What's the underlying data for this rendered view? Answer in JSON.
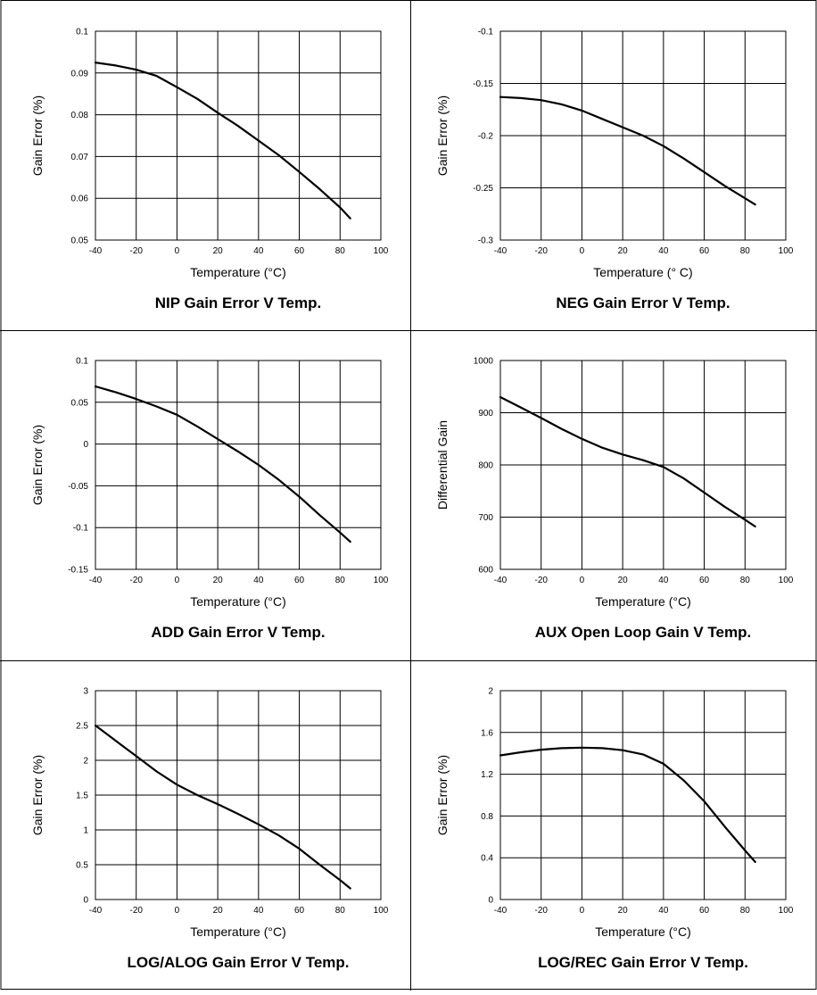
{
  "chart_data": [
    {
      "type": "line",
      "title": "NIP Gain Error V Temp.",
      "xlabel": "Temperature (°C)",
      "ylabel": "Gain Error (%)",
      "xlim": [
        -40,
        100
      ],
      "ylim": [
        0.05,
        0.1
      ],
      "xticks": [
        "-40",
        "-20",
        "0",
        "20",
        "40",
        "60",
        "80",
        "100"
      ],
      "yticks": [
        "0.05",
        "0.06",
        "0.07",
        "0.08",
        "0.09",
        "0.1"
      ],
      "grid": true,
      "series": [
        {
          "x": [
            -40,
            -30,
            -20,
            -10,
            0,
            10,
            20,
            30,
            40,
            50,
            60,
            70,
            80,
            85
          ],
          "y": [
            0.0925,
            0.0918,
            0.0908,
            0.0893,
            0.0866,
            0.0838,
            0.0805,
            0.0773,
            0.0738,
            0.0703,
            0.0663,
            0.0622,
            0.0578,
            0.0552
          ]
        }
      ]
    },
    {
      "type": "line",
      "title": "NEG Gain Error V Temp.",
      "xlabel": "Temperature (° C)",
      "ylabel": "Gain Error (%)",
      "xlim": [
        -40,
        100
      ],
      "ylim": [
        -0.3,
        -0.1
      ],
      "xticks": [
        "-40",
        "-20",
        "0",
        "20",
        "40",
        "60",
        "80",
        "100"
      ],
      "yticks": [
        "-0.3",
        "-0.25",
        "-0.2",
        "-0.15",
        "-0.1"
      ],
      "grid": true,
      "series": [
        {
          "x": [
            -40,
            -30,
            -20,
            -10,
            0,
            10,
            20,
            30,
            40,
            50,
            60,
            70,
            80,
            85
          ],
          "y": [
            -0.163,
            -0.164,
            -0.166,
            -0.17,
            -0.176,
            -0.184,
            -0.192,
            -0.2,
            -0.21,
            -0.222,
            -0.235,
            -0.248,
            -0.26,
            -0.266
          ]
        }
      ]
    },
    {
      "type": "line",
      "title": "ADD Gain Error V Temp.",
      "xlabel": "Temperature (°C)",
      "ylabel": "Gain Error (%)",
      "xlim": [
        -40,
        100
      ],
      "ylim": [
        -0.15,
        0.1
      ],
      "xticks": [
        "-40",
        "-20",
        "0",
        "20",
        "40",
        "60",
        "80",
        "100"
      ],
      "yticks": [
        "-0.15",
        "-0.1",
        "-0.05",
        "0",
        "0.05",
        "0.1"
      ],
      "grid": true,
      "series": [
        {
          "x": [
            -40,
            -30,
            -20,
            -10,
            0,
            10,
            20,
            30,
            40,
            50,
            60,
            70,
            80,
            85
          ],
          "y": [
            0.069,
            0.062,
            0.054,
            0.045,
            0.035,
            0.021,
            0.006,
            -0.009,
            -0.025,
            -0.043,
            -0.063,
            -0.085,
            -0.106,
            -0.117
          ]
        }
      ]
    },
    {
      "type": "line",
      "title": "AUX Open Loop Gain V Temp.",
      "xlabel": "Temperature (°C)",
      "ylabel": "Differential Gain",
      "xlim": [
        -40,
        100
      ],
      "ylim": [
        600,
        1000
      ],
      "xticks": [
        "-40",
        "-20",
        "0",
        "20",
        "40",
        "60",
        "80",
        "100"
      ],
      "yticks": [
        "600",
        "700",
        "800",
        "900",
        "1000"
      ],
      "grid": true,
      "series": [
        {
          "x": [
            -40,
            -30,
            -20,
            -10,
            0,
            10,
            20,
            30,
            40,
            50,
            60,
            70,
            80,
            85
          ],
          "y": [
            930,
            910,
            890,
            869,
            850,
            833,
            820,
            809,
            796,
            774,
            747,
            720,
            695,
            682
          ]
        }
      ]
    },
    {
      "type": "line",
      "title": "LOG/ALOG Gain Error V Temp.",
      "xlabel": "Temperature (°C)",
      "ylabel": "Gain Error (%)",
      "xlim": [
        -40,
        100
      ],
      "ylim": [
        0,
        3
      ],
      "xticks": [
        "-40",
        "-20",
        "0",
        "20",
        "40",
        "60",
        "80",
        "100"
      ],
      "yticks": [
        "0",
        "0.5",
        "1",
        "1.5",
        "2",
        "2.5",
        "3"
      ],
      "grid": true,
      "series": [
        {
          "x": [
            -40,
            -30,
            -20,
            -10,
            0,
            10,
            20,
            30,
            40,
            50,
            60,
            70,
            80,
            85
          ],
          "y": [
            2.5,
            2.28,
            2.06,
            1.84,
            1.65,
            1.5,
            1.37,
            1.23,
            1.08,
            0.92,
            0.73,
            0.5,
            0.28,
            0.16
          ]
        }
      ]
    },
    {
      "type": "line",
      "title": "LOG/REC Gain Error V Temp.",
      "xlabel": "Temperature (°C)",
      "ylabel": "Gain Error (%)",
      "xlim": [
        -40,
        100
      ],
      "ylim": [
        0,
        2
      ],
      "xticks": [
        "-40",
        "-20",
        "0",
        "20",
        "40",
        "60",
        "80",
        "100"
      ],
      "yticks": [
        "0",
        "0.4",
        "0.8",
        "1.2",
        "1.6",
        "2"
      ],
      "grid": true,
      "series": [
        {
          "x": [
            -40,
            -30,
            -20,
            -10,
            0,
            10,
            20,
            30,
            40,
            50,
            60,
            70,
            80,
            85
          ],
          "y": [
            1.38,
            1.41,
            1.435,
            1.45,
            1.455,
            1.45,
            1.43,
            1.39,
            1.3,
            1.14,
            0.94,
            0.7,
            0.47,
            0.36
          ]
        }
      ]
    }
  ]
}
